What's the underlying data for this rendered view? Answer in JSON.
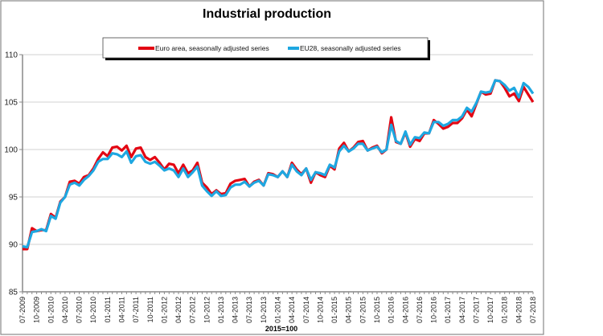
{
  "chart_data": {
    "type": "line",
    "title": "Industrial production",
    "xlabel": "2015=100",
    "ylabel": "",
    "ylim": [
      85,
      110
    ],
    "yticks": [
      85,
      90,
      95,
      100,
      105,
      110
    ],
    "grid": "horizontal",
    "legend_placement": "top",
    "x_start": "07-2009",
    "x_end": "07-2018",
    "x_frequency": "monthly",
    "xtick_labels": [
      "07-2009",
      "10-2009",
      "01-2010",
      "04-2010",
      "07-2010",
      "10-2010",
      "01-2011",
      "04-2011",
      "07-2011",
      "10-2011",
      "01-2012",
      "04-2012",
      "07-2012",
      "10-2012",
      "01-2013",
      "04-2013",
      "07-2013",
      "10-2013",
      "01-2014",
      "04-2014",
      "07-2014",
      "10-2014",
      "01-2015",
      "04-2015",
      "07-2015",
      "10-2015",
      "01-2016",
      "04-2016",
      "07-2016",
      "10-2016",
      "01-2017",
      "04-2017",
      "07-2017",
      "10-2017",
      "01-2018",
      "04-2018",
      "07-2018"
    ],
    "series": [
      {
        "name": "Euro area, seasonally adjusted series",
        "color": "#e30613",
        "values": [
          89.5,
          89.5,
          91.7,
          91.4,
          91.5,
          91.5,
          93.2,
          92.8,
          94.5,
          95.0,
          96.6,
          96.7,
          96.4,
          97.1,
          97.3,
          98.0,
          99.0,
          99.7,
          99.3,
          100.2,
          100.3,
          99.9,
          100.4,
          99.2,
          100.1,
          100.2,
          99.2,
          98.9,
          99.2,
          98.6,
          97.9,
          98.5,
          98.4,
          97.5,
          98.4,
          97.5,
          97.8,
          98.6,
          96.5,
          96.0,
          95.3,
          95.7,
          95.3,
          95.4,
          96.4,
          96.7,
          96.8,
          96.9,
          96.1,
          96.6,
          96.8,
          96.2,
          97.5,
          97.4,
          97.1,
          97.7,
          97.1,
          98.6,
          97.9,
          97.4,
          98.0,
          96.5,
          97.6,
          97.3,
          97.1,
          98.3,
          97.9,
          100.1,
          100.7,
          99.8,
          100.2,
          100.8,
          100.9,
          99.9,
          100.2,
          100.4,
          99.6,
          100.0,
          103.4,
          100.8,
          100.6,
          101.8,
          100.3,
          101.1,
          100.9,
          101.7,
          101.7,
          103.1,
          102.7,
          102.2,
          102.4,
          102.8,
          102.8,
          103.3,
          104.2,
          103.5,
          104.8,
          106.1,
          105.8,
          105.9,
          107.3,
          107.2,
          106.5,
          105.6,
          105.9,
          105.1,
          106.6,
          105.8,
          105.0
        ]
      },
      {
        "name": "EU28, seasonally adjusted series",
        "color": "#1ea7e1",
        "values": [
          89.8,
          89.7,
          91.3,
          91.4,
          91.6,
          91.4,
          93.0,
          92.7,
          94.4,
          95.0,
          96.3,
          96.5,
          96.2,
          96.8,
          97.2,
          97.8,
          98.7,
          99.0,
          99.0,
          99.6,
          99.5,
          99.2,
          99.8,
          98.6,
          99.3,
          99.4,
          98.7,
          98.5,
          98.7,
          98.3,
          97.8,
          98.0,
          97.8,
          97.1,
          98.0,
          97.1,
          97.6,
          98.2,
          96.2,
          95.6,
          95.1,
          95.6,
          95.1,
          95.2,
          96.0,
          96.3,
          96.3,
          96.6,
          96.1,
          96.5,
          96.7,
          96.2,
          97.4,
          97.3,
          97.1,
          97.7,
          97.1,
          98.4,
          97.7,
          97.3,
          98.0,
          96.8,
          97.6,
          97.5,
          97.3,
          98.4,
          98.1,
          99.8,
          100.4,
          99.8,
          100.1,
          100.6,
          100.6,
          99.9,
          100.1,
          100.3,
          99.7,
          100.0,
          102.6,
          100.9,
          100.6,
          101.9,
          100.5,
          101.3,
          101.2,
          101.8,
          101.7,
          102.9,
          102.9,
          102.5,
          102.7,
          103.1,
          103.1,
          103.5,
          104.4,
          104.0,
          104.9,
          106.1,
          106.0,
          106.1,
          107.3,
          107.2,
          106.8,
          106.2,
          106.5,
          105.5,
          107.0,
          106.6,
          105.9
        ]
      }
    ]
  }
}
